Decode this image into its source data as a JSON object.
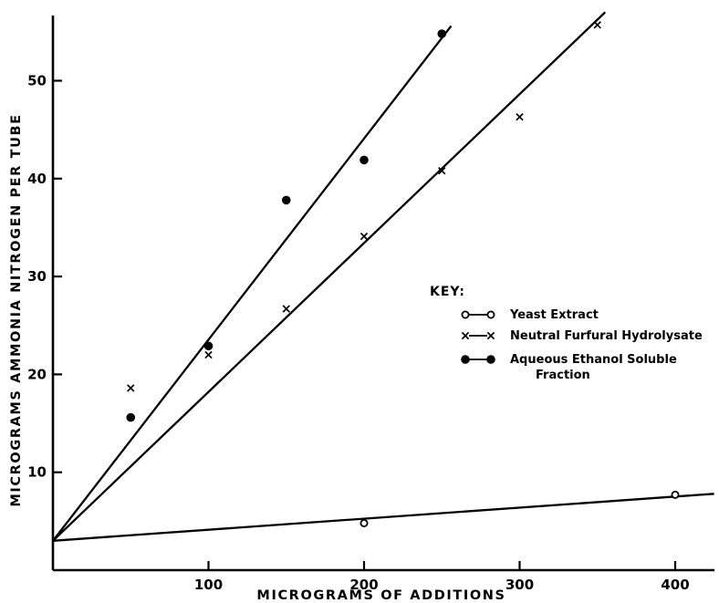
{
  "chart_data": {
    "type": "scatter",
    "title": "",
    "xlabel": "MICROGRAMS OF ADDITIONS",
    "ylabel": "MICROGRAMS AMMONIA NITROGEN PER TUBE",
    "xlim": [
      0,
      425
    ],
    "ylim": [
      0,
      57
    ],
    "x_ticks": [
      100,
      200,
      300,
      400
    ],
    "x_tick_labels": [
      "100",
      "200",
      "300",
      "400"
    ],
    "y_ticks": [
      10,
      20,
      30,
      40,
      50
    ],
    "y_tick_labels": [
      "10",
      "20",
      "30",
      "40",
      "50"
    ],
    "grid": false,
    "legend_position": "right",
    "legend_title": "KEY:",
    "series": [
      {
        "name": "Yeast Extract",
        "legend_symbol": "o—o",
        "marker": "circle-open",
        "x": [
          200,
          400
        ],
        "y": [
          4.8,
          7.7
        ],
        "fit_line": {
          "x": [
            0,
            425
          ],
          "y": [
            3.0,
            7.8
          ]
        }
      },
      {
        "name": "Neutral Furfural Hydrolysate",
        "legend_symbol": "x—x",
        "marker": "x",
        "x": [
          50,
          100,
          150,
          200,
          250,
          300,
          350
        ],
        "y": [
          18.6,
          22.0,
          26.7,
          34.1,
          40.8,
          46.3,
          55.7
        ],
        "fit_line": {
          "x": [
            0,
            355
          ],
          "y": [
            3.0,
            57.0
          ]
        }
      },
      {
        "name": "Aqueous Ethanol Soluble Fraction",
        "legend_symbol": "●—●",
        "legend_lines": [
          "Aqueous Ethanol Soluble",
          "Fraction"
        ],
        "marker": "circle-filled",
        "x": [
          50,
          100,
          150,
          200,
          250
        ],
        "y": [
          15.6,
          22.9,
          37.8,
          41.9,
          54.8
        ],
        "fit_line": {
          "x": [
            0,
            256
          ],
          "y": [
            3.0,
            55.6
          ]
        }
      }
    ]
  }
}
